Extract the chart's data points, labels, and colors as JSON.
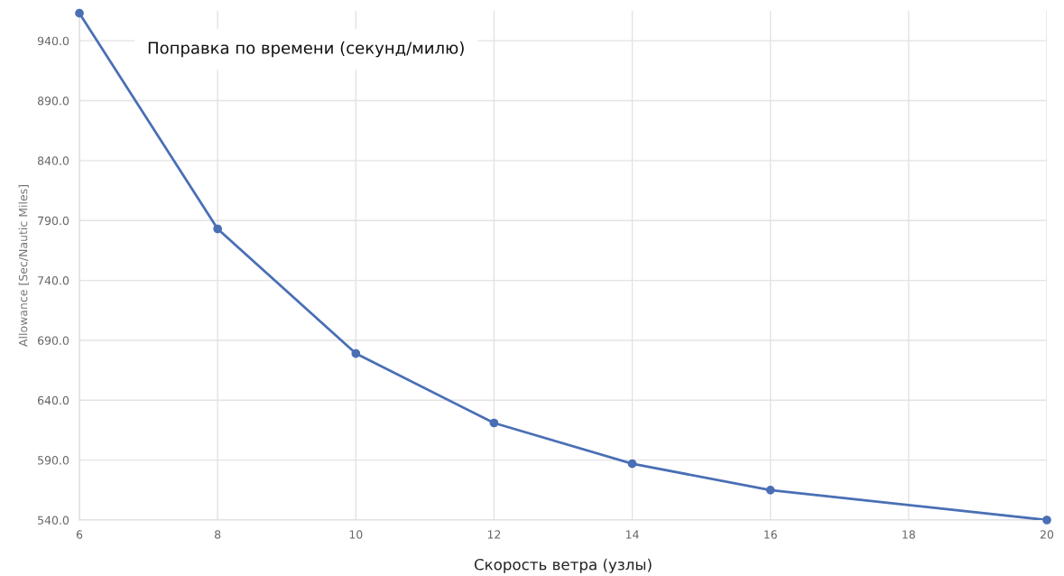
{
  "chart_data": {
    "type": "line",
    "title": "Поправка по времени (секунд/милю)",
    "xlabel": "Скорость ветра (узлы)",
    "ylabel": "Allowance [Sec/Nautic Miles]",
    "x": [
      6,
      8,
      10,
      12,
      14,
      16,
      20
    ],
    "series": [
      {
        "color": "#4a6fb5",
        "values": [
          963,
          783,
          679,
          621,
          587,
          565,
          540
        ]
      }
    ],
    "xlim": [
      6,
      20
    ],
    "xticks": [
      6,
      8,
      10,
      12,
      14,
      16,
      18,
      20
    ],
    "ylim": [
      540,
      965
    ],
    "yticks": [
      {
        "value": 540,
        "label": "540.0"
      },
      {
        "value": 590,
        "label": "590.0"
      },
      {
        "value": 640,
        "label": "640.0"
      },
      {
        "value": 690,
        "label": "690.0"
      },
      {
        "value": 740,
        "label": "740.0"
      },
      {
        "value": 790,
        "label": "790.0"
      },
      {
        "value": 840,
        "label": "840.0"
      },
      {
        "value": 890,
        "label": "890.0"
      },
      {
        "value": 940,
        "label": "940.0"
      }
    ],
    "grid": true,
    "marker": "circle",
    "line_style": "solid"
  }
}
